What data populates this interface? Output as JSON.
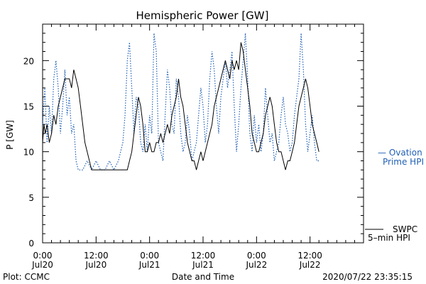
{
  "chart_data": {
    "type": "line",
    "title": "Hemispheric Power [GW]",
    "ylabel": "P [GW]",
    "xlabel": "Date and Time",
    "ylim": [
      0,
      24
    ],
    "yticks": [
      0,
      5,
      10,
      15,
      20
    ],
    "xlim_hours": [
      0,
      72
    ],
    "xticks": [
      {
        "h": 0,
        "time": "0:00",
        "date": "Jul20"
      },
      {
        "h": 12,
        "time": "12:00",
        "date": "Jul20"
      },
      {
        "h": 24,
        "time": "0:00",
        "date": "Jul21"
      },
      {
        "h": 36,
        "time": "12:00",
        "date": "Jul21"
      },
      {
        "h": 48,
        "time": "0:00",
        "date": "Jul22"
      },
      {
        "h": 60,
        "time": "12:00",
        "date": "Jul22"
      }
    ],
    "footer_left": "Plot: CCMC",
    "footer_right": "2020/07/22 23:35:15",
    "series": [
      {
        "name": "SWPC 5-min HPI",
        "legend_line1": "SWPC",
        "legend_line2": "5–min HPI",
        "color": "#000000",
        "style": "solid",
        "points": [
          [
            0,
            11
          ],
          [
            0.3,
            13
          ],
          [
            0.6,
            12
          ],
          [
            1,
            13
          ],
          [
            1.5,
            11
          ],
          [
            2,
            12
          ],
          [
            2.5,
            14
          ],
          [
            3,
            13
          ],
          [
            3.5,
            15
          ],
          [
            4,
            16
          ],
          [
            4.5,
            17
          ],
          [
            5,
            18
          ],
          [
            6,
            18
          ],
          [
            6.5,
            17
          ],
          [
            7,
            19
          ],
          [
            7.5,
            18
          ],
          [
            8,
            17
          ],
          [
            8.5,
            15
          ],
          [
            9,
            13
          ],
          [
            9.5,
            11
          ],
          [
            10,
            10
          ],
          [
            10.5,
            9
          ],
          [
            11,
            8
          ],
          [
            12,
            8
          ],
          [
            14,
            8
          ],
          [
            16,
            8
          ],
          [
            18,
            8
          ],
          [
            19,
            8
          ],
          [
            19.5,
            9
          ],
          [
            20,
            10
          ],
          [
            20.5,
            12
          ],
          [
            21,
            14
          ],
          [
            21.5,
            16
          ],
          [
            22,
            15
          ],
          [
            22.5,
            13
          ],
          [
            23,
            10
          ],
          [
            23.5,
            10
          ],
          [
            24,
            11
          ],
          [
            24.5,
            10
          ],
          [
            25,
            10
          ],
          [
            25.5,
            11
          ],
          [
            26,
            11
          ],
          [
            26.5,
            12
          ],
          [
            27,
            11
          ],
          [
            27.5,
            12
          ],
          [
            28,
            13
          ],
          [
            28.5,
            12
          ],
          [
            29,
            14
          ],
          [
            29.5,
            15
          ],
          [
            30,
            16
          ],
          [
            30.5,
            18
          ],
          [
            31,
            16
          ],
          [
            31.5,
            15
          ],
          [
            32,
            13
          ],
          [
            32.5,
            11
          ],
          [
            33,
            10
          ],
          [
            33.5,
            9
          ],
          [
            34,
            9
          ],
          [
            34.5,
            8
          ],
          [
            35,
            9
          ],
          [
            35.5,
            10
          ],
          [
            36,
            9
          ],
          [
            36.5,
            10
          ],
          [
            37,
            11
          ],
          [
            37.5,
            12
          ],
          [
            38,
            13
          ],
          [
            38.5,
            15
          ],
          [
            39,
            16
          ],
          [
            39.5,
            17
          ],
          [
            40,
            18
          ],
          [
            41,
            20
          ],
          [
            41.5,
            19
          ],
          [
            42,
            18
          ],
          [
            42.5,
            20
          ],
          [
            43,
            19
          ],
          [
            43.5,
            20
          ],
          [
            44,
            19
          ],
          [
            44.5,
            22
          ],
          [
            45,
            21
          ],
          [
            45.5,
            19
          ],
          [
            46,
            17
          ],
          [
            46.5,
            15
          ],
          [
            47,
            12
          ],
          [
            47.5,
            11
          ],
          [
            48,
            10
          ],
          [
            48.5,
            10
          ],
          [
            49,
            11
          ],
          [
            49.5,
            12
          ],
          [
            50,
            14
          ],
          [
            50.5,
            15
          ],
          [
            51,
            16
          ],
          [
            51.5,
            15
          ],
          [
            52,
            13
          ],
          [
            52.5,
            11
          ],
          [
            53,
            10
          ],
          [
            53.5,
            10
          ],
          [
            54,
            9
          ],
          [
            54.5,
            8
          ],
          [
            55,
            9
          ],
          [
            55.5,
            9
          ],
          [
            56,
            10
          ],
          [
            56.5,
            11
          ],
          [
            57,
            13
          ],
          [
            57.5,
            15
          ],
          [
            58,
            16
          ],
          [
            58.5,
            17
          ],
          [
            59,
            18
          ],
          [
            59.5,
            17
          ],
          [
            60,
            15
          ],
          [
            60.5,
            13
          ],
          [
            61,
            12
          ],
          [
            61.5,
            11
          ],
          [
            62,
            10
          ]
        ]
      },
      {
        "name": "Ovation Prime HPI",
        "legend_line1": "— Ovation",
        "legend_line2": "Prime HPI",
        "color": "#1f5fb4",
        "style": "dotted",
        "points": [
          [
            0,
            13
          ],
          [
            0.5,
            17
          ],
          [
            1,
            11
          ],
          [
            1.5,
            15
          ],
          [
            2,
            12
          ],
          [
            2.5,
            18
          ],
          [
            3,
            20
          ],
          [
            3.5,
            17
          ],
          [
            4,
            12
          ],
          [
            4.5,
            15
          ],
          [
            5,
            19
          ],
          [
            5.5,
            14
          ],
          [
            6,
            16
          ],
          [
            6.5,
            12
          ],
          [
            7,
            13
          ],
          [
            7.5,
            9
          ],
          [
            8,
            8
          ],
          [
            9,
            8
          ],
          [
            10,
            9
          ],
          [
            11,
            8
          ],
          [
            12,
            9
          ],
          [
            13,
            8
          ],
          [
            14,
            8
          ],
          [
            15,
            9
          ],
          [
            16,
            8
          ],
          [
            17,
            9
          ],
          [
            18,
            11
          ],
          [
            18.5,
            14
          ],
          [
            19,
            20
          ],
          [
            19.5,
            22
          ],
          [
            20,
            17
          ],
          [
            20.5,
            12
          ],
          [
            21,
            16
          ],
          [
            21.5,
            15
          ],
          [
            22,
            11
          ],
          [
            22.5,
            10
          ],
          [
            23,
            13
          ],
          [
            23.5,
            10
          ],
          [
            24,
            14
          ],
          [
            24.5,
            12
          ],
          [
            25,
            23
          ],
          [
            25.5,
            21
          ],
          [
            26,
            11
          ],
          [
            26.5,
            10
          ],
          [
            27,
            9
          ],
          [
            27.5,
            14
          ],
          [
            28,
            19
          ],
          [
            28.5,
            17
          ],
          [
            29,
            13
          ],
          [
            29.5,
            12
          ],
          [
            30,
            18
          ],
          [
            30.5,
            16
          ],
          [
            31,
            12
          ],
          [
            31.5,
            10
          ],
          [
            32,
            11
          ],
          [
            32.5,
            14
          ],
          [
            33,
            12
          ],
          [
            33.5,
            9
          ],
          [
            34,
            10
          ],
          [
            34.5,
            11
          ],
          [
            35,
            14
          ],
          [
            35.5,
            17
          ],
          [
            36,
            15
          ],
          [
            36.5,
            11
          ],
          [
            37,
            13
          ],
          [
            37.5,
            18
          ],
          [
            38,
            21
          ],
          [
            38.5,
            19
          ],
          [
            39,
            15
          ],
          [
            39.5,
            12
          ],
          [
            40,
            16
          ],
          [
            40.5,
            18
          ],
          [
            41,
            20
          ],
          [
            41.5,
            17
          ],
          [
            42,
            19
          ],
          [
            42.5,
            21
          ],
          [
            43,
            15
          ],
          [
            43.5,
            10
          ],
          [
            44,
            13
          ],
          [
            44.5,
            17
          ],
          [
            45,
            20
          ],
          [
            45.5,
            23
          ],
          [
            46,
            18
          ],
          [
            46.5,
            12
          ],
          [
            47,
            10
          ],
          [
            47.5,
            14
          ],
          [
            48,
            11
          ],
          [
            48.5,
            13
          ],
          [
            49,
            10
          ],
          [
            49.5,
            12
          ],
          [
            50,
            17
          ],
          [
            50.5,
            14
          ],
          [
            51,
            11
          ],
          [
            51.5,
            12
          ],
          [
            52,
            9
          ],
          [
            52.5,
            10
          ],
          [
            53,
            11
          ],
          [
            53.5,
            14
          ],
          [
            54,
            16
          ],
          [
            54.5,
            13
          ],
          [
            55,
            12
          ],
          [
            55.5,
            10
          ],
          [
            56,
            11
          ],
          [
            56.5,
            14
          ],
          [
            57,
            16
          ],
          [
            57.5,
            18
          ],
          [
            58,
            23
          ],
          [
            58.5,
            19
          ],
          [
            59,
            13
          ],
          [
            59.5,
            10
          ],
          [
            60,
            12
          ],
          [
            60.5,
            14
          ],
          [
            61,
            11
          ],
          [
            61.5,
            9
          ],
          [
            62,
            9
          ]
        ]
      }
    ]
  }
}
